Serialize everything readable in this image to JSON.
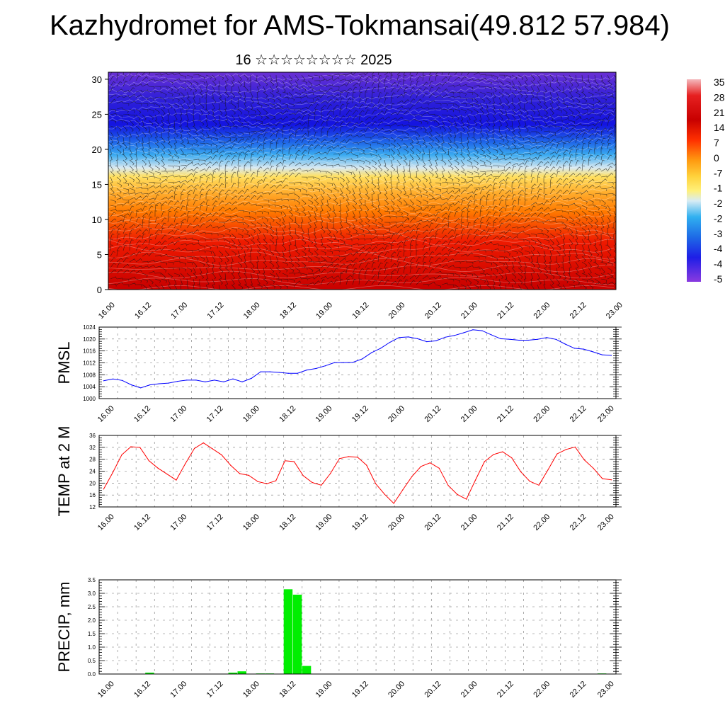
{
  "title": "Kazhydromet for AMS-Tokmansai(49.812 57.984)",
  "subtitle": "16 ☆☆☆☆☆☆☆☆ 2025",
  "time_labels": [
    "16.00",
    "16.12",
    "17.00",
    "17.12",
    "18.00",
    "18.12",
    "19.00",
    "19.12",
    "20.00",
    "20.12",
    "21.00",
    "21.12",
    "22.00",
    "22.12",
    "23.00"
  ],
  "chart_data": [
    {
      "type": "heatmap",
      "panel": "cross-section",
      "y_ticks": [
        0,
        5,
        10,
        15,
        20,
        25,
        30
      ],
      "ylim": [
        0,
        31
      ],
      "x": [
        "16.00",
        "16.12",
        "17.00",
        "17.12",
        "18.00",
        "18.12",
        "19.00",
        "19.12",
        "20.00",
        "20.12",
        "21.00",
        "21.12",
        "22.00",
        "22.12",
        "23.00"
      ],
      "colorbar_labels": [
        "35",
        "28",
        "21",
        "14",
        "7",
        "0",
        "-7",
        "-1",
        "-2",
        "-2",
        "-3",
        "-4",
        "-4",
        "-5"
      ],
      "colors": {
        "warm": "#d40000",
        "mid": "#ffd23c",
        "cool": "#2aa6f0",
        "cold": "#1e1ee6",
        "top": "#6a2bd0"
      }
    },
    {
      "type": "line",
      "ylabel": "PMSL",
      "ylim": [
        1000,
        1024
      ],
      "y_ticks": [
        1000,
        1004,
        1008,
        1012,
        1016,
        1020,
        1024
      ],
      "color": "#0000ff",
      "values": [
        1006,
        1006.6,
        1006.1,
        1004.6,
        1003.6,
        1004.6,
        1005,
        1005.2,
        1005.8,
        1006.2,
        1006.2,
        1005.6,
        1006.2,
        1005.6,
        1006.6,
        1005.6,
        1006.8,
        1009,
        1009,
        1008.8,
        1008.5,
        1008.5,
        1009.6,
        1010.1,
        1011,
        1012.1,
        1012.1,
        1012.2,
        1013.3,
        1015.4,
        1016.9,
        1018.9,
        1020.5,
        1020.7,
        1020.1,
        1019.1,
        1019.4,
        1020.6,
        1021.2,
        1022.1,
        1023.1,
        1022.8,
        1021.4,
        1020.1,
        1019.9,
        1019.6,
        1019.6,
        1019.9,
        1020.5,
        1019.9,
        1018.3,
        1016.9,
        1016.6,
        1015.7,
        1014.7,
        1014.5
      ]
    },
    {
      "type": "line",
      "ylabel": "TEMP at 2 M",
      "ylim": [
        12,
        36
      ],
      "y_ticks": [
        12,
        16,
        20,
        24,
        28,
        32,
        36
      ],
      "color": "#ff0000",
      "values": [
        18,
        23.5,
        29.5,
        32.2,
        32,
        27.5,
        25,
        23,
        21,
        26.5,
        31.6,
        33.5,
        31.5,
        29.5,
        26,
        23.2,
        22.6,
        20.5,
        19.8,
        20.8,
        27.5,
        27.2,
        22.5,
        20.2,
        19.3,
        23.2,
        28.2,
        28.9,
        28.7,
        26,
        19.8,
        16.2,
        13.2,
        17.8,
        22.2,
        25.6,
        26.8,
        25,
        19.2,
        16.2,
        14.6,
        21,
        27.2,
        29.6,
        30.5,
        28.5,
        23.8,
        20.6,
        19.3,
        24.4,
        29.8,
        31.3,
        32.1,
        27.8,
        25,
        21.5,
        21.1
      ]
    },
    {
      "type": "bar",
      "ylabel": "PRECIP, mm",
      "ylim": [
        0,
        3.5
      ],
      "y_ticks": [
        "0.0",
        "0.5",
        "1.0",
        "1.5",
        "2.0",
        "2.5",
        "3.0",
        "3.5"
      ],
      "color": "#00ee00",
      "values": [
        0,
        0,
        0,
        0,
        0,
        0.05,
        0,
        0,
        0,
        0,
        0,
        0,
        0,
        0,
        0.05,
        0.1,
        0,
        0.02,
        0.02,
        0,
        3.15,
        2.95,
        0.3,
        0,
        0,
        0,
        0,
        0,
        0,
        0,
        0,
        0,
        0,
        0,
        0,
        0,
        0,
        0,
        0,
        0,
        0,
        0,
        0,
        0,
        0,
        0,
        0,
        0,
        0,
        0,
        0,
        0,
        0,
        0,
        0.02,
        0
      ]
    }
  ]
}
